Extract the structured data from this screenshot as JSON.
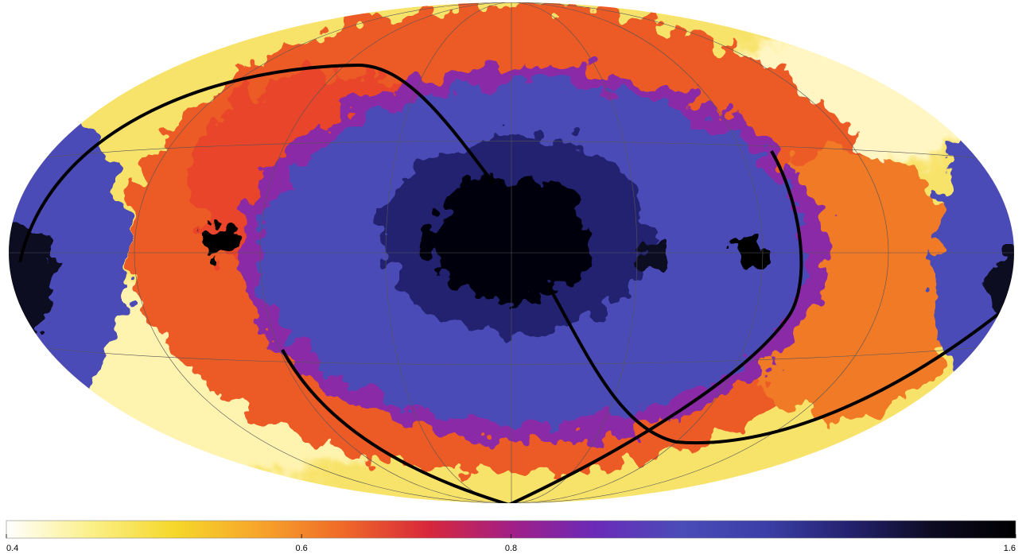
{
  "chart_data": {
    "type": "skymap",
    "colorbar": {
      "clim": [
        0.4,
        1.6
      ],
      "ticks": [
        0.4,
        0.6,
        0.8,
        1.6
      ],
      "log": true,
      "colormap": [
        "#ffffff",
        "#fbf08a",
        "#f5d82a",
        "#f7a52a",
        "#ef6a28",
        "#d8283a",
        "#a21f86",
        "#6a2ab8",
        "#4b4cb8",
        "#3c3fa8",
        "#242270",
        "#0d0b22",
        "#000000"
      ]
    }
  }
}
